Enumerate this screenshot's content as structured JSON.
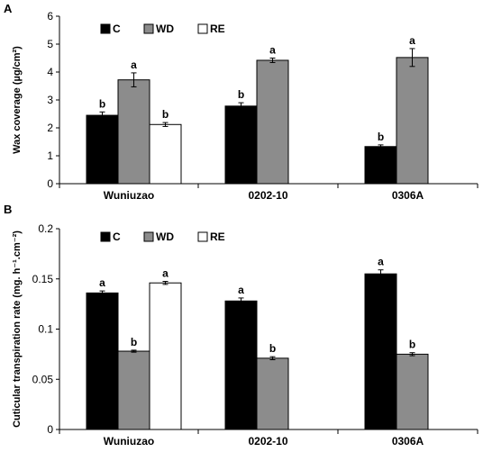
{
  "chart_data": [
    {
      "type": "bar",
      "panel_label": "A",
      "ylabel": "Wax coverage (µg/cm²)",
      "ylim": [
        0,
        6
      ],
      "yticks": [
        "0",
        "1",
        "2",
        "3",
        "4",
        "5",
        "6"
      ],
      "categories": [
        "Wuniuzao",
        "0202-10",
        "0306A"
      ],
      "series": [
        {
          "name": "C",
          "color": "#000000",
          "values": [
            2.45,
            2.78,
            1.33
          ],
          "errors": [
            0.12,
            0.12,
            0.06
          ],
          "sig": [
            "b",
            "b",
            "b"
          ]
        },
        {
          "name": "WD",
          "color": "#8c8c8c",
          "values": [
            3.72,
            4.42,
            4.52
          ],
          "errors": [
            0.25,
            0.08,
            0.32
          ],
          "sig": [
            "a",
            "a",
            "a"
          ]
        },
        {
          "name": "RE",
          "color": "#ffffff",
          "values": [
            2.12,
            null,
            null
          ],
          "errors": [
            0.07,
            null,
            null
          ],
          "sig": [
            "b",
            null,
            null
          ]
        }
      ],
      "legend": "top-left"
    },
    {
      "type": "bar",
      "panel_label": "B",
      "ylabel": "Cuticular transpiration rate (mg. h⁻¹.cm⁻²)",
      "ylim": [
        0,
        0.2
      ],
      "yticks": [
        "0",
        "0.05",
        "0.1",
        "0.15",
        "0.2"
      ],
      "categories": [
        "Wuniuzao",
        "0202-10",
        "0306A"
      ],
      "series": [
        {
          "name": "C",
          "color": "#000000",
          "values": [
            0.136,
            0.128,
            0.155
          ],
          "errors": [
            0.002,
            0.003,
            0.004
          ],
          "sig": [
            "a",
            "a",
            "a"
          ]
        },
        {
          "name": "WD",
          "color": "#8c8c8c",
          "values": [
            0.078,
            0.071,
            0.075
          ],
          "errors": [
            0.001,
            0.0015,
            0.0015
          ],
          "sig": [
            "b",
            "b",
            "b"
          ]
        },
        {
          "name": "RE",
          "color": "#ffffff",
          "values": [
            0.146,
            null,
            null
          ],
          "errors": [
            0.0015,
            null,
            null
          ],
          "sig": [
            "a",
            null,
            null
          ]
        }
      ],
      "legend": "top-left"
    }
  ]
}
